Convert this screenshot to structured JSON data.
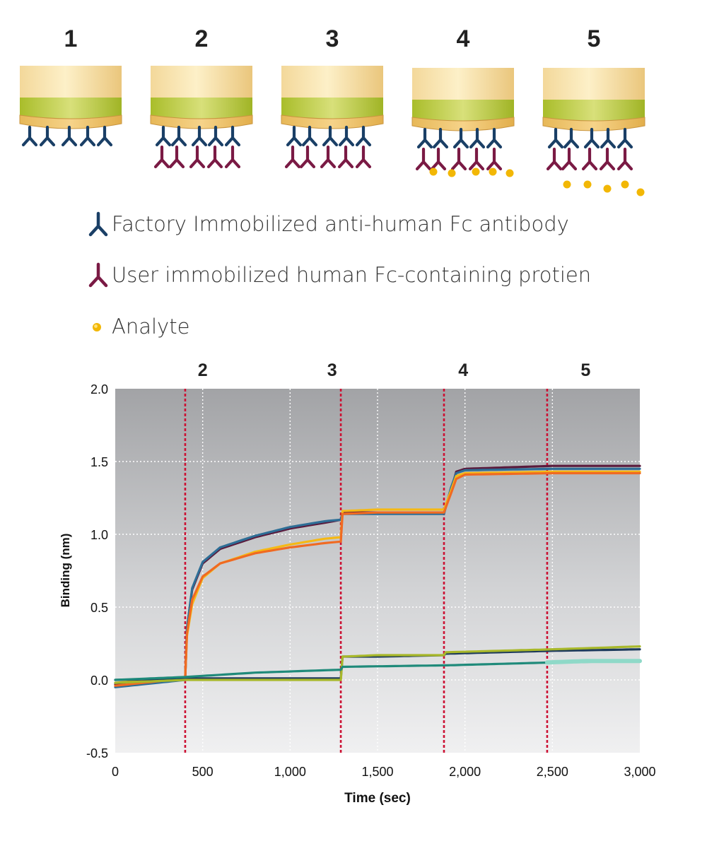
{
  "diagram": {
    "steps": [
      "1",
      "2",
      "3",
      "4",
      "5"
    ]
  },
  "legend": {
    "items": [
      {
        "label": "Factory Immobilized anti-human Fc antibody",
        "icon": "antibody-icon",
        "color": "#1a3f66"
      },
      {
        "label": "User immobilized human Fc-containing protien",
        "icon": "fc-protein-icon",
        "color": "#7a1a44"
      },
      {
        "label": "Analyte",
        "icon": "analyte-icon",
        "color": "#f2b705"
      }
    ]
  },
  "colors": {
    "antibody": "#1a3f66",
    "protein": "#7a1a44",
    "analyte": "#f2b705",
    "marker": "#cc1133"
  },
  "chart_data": {
    "type": "line",
    "xlabel": "Time (sec)",
    "ylabel": "Binding (nm)",
    "xlim": [
      0,
      3000
    ],
    "ylim": [
      -0.5,
      2.0
    ],
    "xticks": [
      0,
      500,
      1000,
      1500,
      2000,
      2500,
      3000
    ],
    "xtick_labels": [
      "0",
      "500",
      "1,000",
      "1,500",
      "2,000",
      "2,500",
      "3,000"
    ],
    "yticks": [
      -0.5,
      0.0,
      0.5,
      1.0,
      1.5,
      2.0
    ],
    "ytick_labels": [
      "-0.5",
      "0.0",
      "0.5",
      "1.0",
      "1.5",
      "2.0"
    ],
    "grid": true,
    "step_markers": [
      {
        "x": 400,
        "label": ""
      },
      {
        "x": 1290,
        "label": ""
      },
      {
        "x": 1880,
        "label": ""
      },
      {
        "x": 2470,
        "label": ""
      }
    ],
    "step_labels": [
      {
        "x": 500,
        "label": "2"
      },
      {
        "x": 1240,
        "label": "3"
      },
      {
        "x": 1990,
        "label": "4"
      },
      {
        "x": 2690,
        "label": "5"
      }
    ],
    "series": [
      {
        "color": "#5a1a3c",
        "x": [
          0,
          400,
          410,
          440,
          500,
          600,
          800,
          1000,
          1200,
          1290,
          1300,
          1500,
          1880,
          1920,
          1950,
          2000,
          2500,
          3000
        ],
        "y": [
          -0.03,
          0.01,
          0.35,
          0.62,
          0.8,
          0.9,
          0.98,
          1.04,
          1.08,
          1.1,
          1.15,
          1.15,
          1.15,
          1.3,
          1.43,
          1.45,
          1.47,
          1.47
        ]
      },
      {
        "color": "#2e6e96",
        "x": [
          0,
          400,
          410,
          440,
          500,
          600,
          800,
          1000,
          1200,
          1290,
          1300,
          1500,
          1880,
          1920,
          1950,
          2000,
          2500,
          3000
        ],
        "y": [
          -0.05,
          0.0,
          0.35,
          0.63,
          0.81,
          0.91,
          0.99,
          1.05,
          1.09,
          1.1,
          1.14,
          1.14,
          1.14,
          1.32,
          1.42,
          1.44,
          1.45,
          1.45
        ]
      },
      {
        "color": "#f5b915",
        "x": [
          0,
          400,
          410,
          440,
          500,
          600,
          800,
          1000,
          1200,
          1290,
          1300,
          1500,
          1880,
          1920,
          1950,
          2000,
          2500,
          3000
        ],
        "y": [
          -0.02,
          0.02,
          0.3,
          0.52,
          0.7,
          0.8,
          0.88,
          0.93,
          0.97,
          0.98,
          1.16,
          1.17,
          1.17,
          1.3,
          1.4,
          1.42,
          1.43,
          1.43
        ]
      },
      {
        "color": "#f06a22",
        "x": [
          0,
          400,
          410,
          440,
          500,
          600,
          800,
          1000,
          1200,
          1290,
          1300,
          1500,
          1880,
          1920,
          1950,
          2000,
          2500,
          3000
        ],
        "y": [
          -0.04,
          0.01,
          0.32,
          0.55,
          0.71,
          0.8,
          0.87,
          0.91,
          0.94,
          0.95,
          1.14,
          1.15,
          1.15,
          1.28,
          1.38,
          1.41,
          1.42,
          1.42
        ]
      },
      {
        "color": "#1d3a5c",
        "x": [
          0,
          400,
          1290,
          1300,
          1500,
          1880,
          1890,
          2500,
          3000
        ],
        "y": [
          0.0,
          0.01,
          0.01,
          0.16,
          0.16,
          0.17,
          0.18,
          0.2,
          0.21
        ]
      },
      {
        "color": "#a8b82a",
        "x": [
          0,
          400,
          1290,
          1300,
          1500,
          1880,
          1890,
          2500,
          3000
        ],
        "y": [
          -0.02,
          0.0,
          0.0,
          0.16,
          0.17,
          0.17,
          0.19,
          0.21,
          0.23
        ]
      },
      {
        "color": "#1f8a7a",
        "x": [
          0,
          400,
          800,
          1290,
          1300,
          1880,
          1890,
          2500,
          3000
        ],
        "y": [
          0.0,
          0.02,
          0.05,
          0.07,
          0.09,
          0.1,
          0.1,
          0.12,
          0.13
        ]
      },
      {
        "color": "#8fd9c8",
        "x": [
          2470,
          2700,
          3000
        ],
        "y": [
          0.12,
          0.13,
          0.13
        ]
      }
    ]
  }
}
